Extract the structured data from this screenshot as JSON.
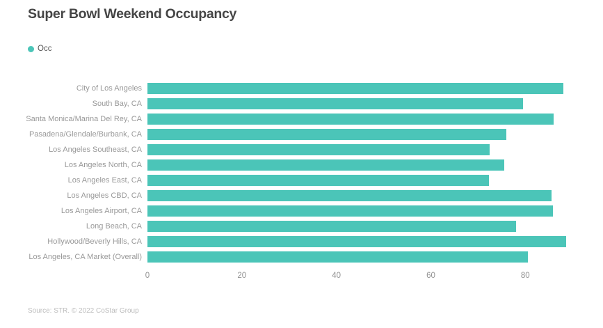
{
  "title": "Super Bowl Weekend Occupancy",
  "legend": {
    "label": "Occ"
  },
  "source": "Source: STR. © 2022 CoStar Group",
  "colors": {
    "bar": "#4BC5B8",
    "title": "#454545",
    "category_label": "#999999",
    "axis_label": "#929292",
    "source_text": "#bdbdbd"
  },
  "chart_data": {
    "type": "bar",
    "orientation": "horizontal",
    "title": "Super Bowl Weekend Occupancy",
    "legend_entries": [
      "Occ"
    ],
    "legend_position": "top-left",
    "grid": false,
    "xlabel": "",
    "ylabel": "",
    "xlim": [
      0,
      91
    ],
    "xticks": [
      0,
      20,
      40,
      60,
      80
    ],
    "categories": [
      "City of Los Angeles",
      "South Bay, CA",
      "Santa Monica/Marina Del Rey, CA",
      "Pasadena/Glendale/Burbank, CA",
      "Los Angeles Southeast, CA",
      "Los Angeles North, CA",
      "Los Angeles East, CA",
      "Los Angeles CBD, CA",
      "Los Angeles Airport, CA",
      "Long Beach, CA",
      "Hollywood/Beverly Hills, CA",
      "Los Angeles, CA Market (Overall)"
    ],
    "values": [
      88,
      79.5,
      86,
      76,
      72.5,
      75.5,
      72.3,
      85.6,
      85.9,
      78,
      88.6,
      80.6
    ]
  }
}
